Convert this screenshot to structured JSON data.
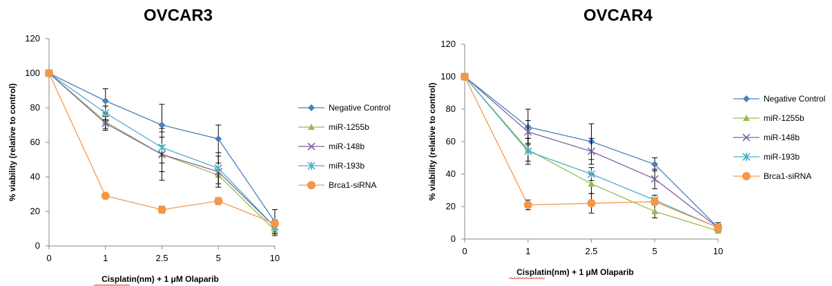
{
  "chart_data": [
    {
      "type": "line",
      "title": "OVCAR3",
      "xlabel": "Cisplatin(nm) + 1 μM  Olaparib",
      "ylabel": "% viability (relative to control)",
      "x": [
        "0",
        "1",
        "2.5",
        "5",
        "10"
      ],
      "ylim": [
        0,
        120
      ],
      "yticks": [
        0,
        20,
        40,
        60,
        80,
        100,
        120
      ],
      "grid": false,
      "legend_position": "right",
      "series": [
        {
          "name": "Negative Control",
          "marker": "diamond",
          "color": "#4a7ebb",
          "values": [
            100,
            84,
            70,
            62,
            14
          ],
          "errors": [
            0,
            7,
            12,
            8,
            7
          ]
        },
        {
          "name": "miR-1255b",
          "marker": "triangle",
          "color": "#98b954",
          "values": [
            100,
            72,
            53,
            41,
            9
          ],
          "errors": [
            0,
            4,
            10,
            7,
            3
          ]
        },
        {
          "name": "miR-148b",
          "marker": "x",
          "color": "#7f63a2",
          "values": [
            100,
            71,
            53,
            43,
            11
          ],
          "errors": [
            0,
            4,
            15,
            9,
            4
          ]
        },
        {
          "name": "miR-193b",
          "marker": "asterisk",
          "color": "#4bacc6",
          "values": [
            100,
            77,
            57,
            45,
            11
          ],
          "errors": [
            0,
            4,
            9,
            9,
            4
          ]
        },
        {
          "name": "Brca1-siRNA",
          "marker": "circle",
          "color": "#f79646",
          "values": [
            100,
            29,
            21,
            26,
            13
          ],
          "errors": [
            0,
            1,
            2,
            2,
            2
          ]
        }
      ]
    },
    {
      "type": "line",
      "title": "OVCAR4",
      "xlabel": "Cisplatin(nm) + 1 μM  Olaparib",
      "ylabel": "% viability (relative to control)",
      "x": [
        "0",
        "1",
        "2.5",
        "5",
        "10"
      ],
      "ylim": [
        0,
        120
      ],
      "yticks": [
        0,
        20,
        40,
        60,
        80,
        100,
        120
      ],
      "grid": false,
      "legend_position": "right",
      "series": [
        {
          "name": "Negative Control",
          "marker": "diamond",
          "color": "#4a7ebb",
          "values": [
            100,
            69,
            60,
            46,
            7
          ],
          "errors": [
            0,
            11,
            11,
            4,
            3
          ]
        },
        {
          "name": "miR-1255b",
          "marker": "triangle",
          "color": "#98b954",
          "values": [
            100,
            55,
            34,
            17,
            5
          ],
          "errors": [
            0,
            7,
            6,
            4,
            1
          ]
        },
        {
          "name": "miR-148b",
          "marker": "x",
          "color": "#7f63a2",
          "values": [
            100,
            66,
            54,
            37,
            7
          ],
          "errors": [
            0,
            7,
            8,
            6,
            2
          ]
        },
        {
          "name": "miR-193b",
          "marker": "asterisk",
          "color": "#4bacc6",
          "values": [
            100,
            54,
            40,
            24,
            7
          ],
          "errors": [
            0,
            8,
            4,
            3,
            2
          ]
        },
        {
          "name": "Brca1-siRNA",
          "marker": "circle",
          "color": "#f79646",
          "values": [
            100,
            21,
            22,
            23,
            7
          ],
          "errors": [
            0,
            3,
            6,
            2,
            1
          ]
        }
      ]
    }
  ]
}
